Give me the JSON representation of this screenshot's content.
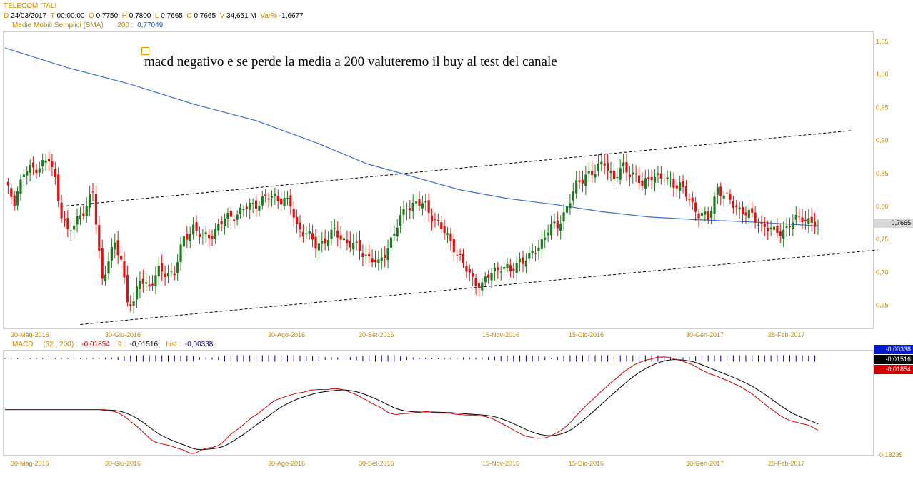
{
  "header": {
    "symbol": "TELECOM ITALI",
    "d_label": "D",
    "date": "24/03/2017",
    "t_label": "T",
    "time": "00:00:00",
    "o_label": "O",
    "open": "0,7750",
    "h_label": "H",
    "high": "0,7800",
    "l_label": "L",
    "low": "0,7665",
    "c_label": "C",
    "close": "0,7665",
    "v_label": "V",
    "volume": "34,651 M",
    "var_label": "Var%",
    "var": "-1,6677",
    "sma_name": "Medie Mobili Semplici (SMA)",
    "sma_period": "200 :",
    "sma_value": "0,77049"
  },
  "annotation": "macd negativo e se perde la media a 200 valuteremo il buy al test del canale",
  "price_badge": "0,7665",
  "macd_header": {
    "name": "MACD",
    "params": "(32 , 200) :",
    "macd_value": "-0,01854",
    "signal_period": "9 :",
    "signal_value": "-0,01516",
    "hist_label": "hist :",
    "hist_value": "-0,00338"
  },
  "macd_badges": [
    "-0,00338",
    "-0,01516",
    "-0,01854"
  ],
  "macd_bottom_label": "-0,18235",
  "colors": {
    "up": "#1f7a1f",
    "down": "#e01010",
    "sma": "#3a6fd0",
    "macd_line": "#000000",
    "signal_line": "#d00000",
    "hist": "#00008b",
    "axis_text": "#c08a00"
  },
  "chart_data": [
    {
      "type": "candlestick",
      "title": "TELECOM ITALI",
      "ylim": [
        0.615,
        1.065
      ],
      "y_ticks": [
        "1,05",
        "1,00",
        "0,95",
        "0,90",
        "0,85",
        "0,80",
        "0,75",
        "0,70",
        "0,65"
      ],
      "y_tick_values": [
        1.05,
        1.0,
        0.95,
        0.9,
        0.85,
        0.8,
        0.75,
        0.7,
        0.65
      ],
      "x_labels": [
        "30-Mag-2016",
        "30-Giu-2016",
        "30-Ago-2016",
        "30-Set-2016",
        "15-Nov-2016",
        "15-Dic-2016",
        "30-Gen-2017",
        "28-Feb-2017"
      ],
      "close_points": [
        [
          0,
          0.83
        ],
        [
          3,
          0.81
        ],
        [
          6,
          0.85
        ],
        [
          10,
          0.86
        ],
        [
          14,
          0.87
        ],
        [
          16,
          0.84
        ],
        [
          18,
          0.79
        ],
        [
          20,
          0.76
        ],
        [
          22,
          0.77
        ],
        [
          24,
          0.79
        ],
        [
          26,
          0.8
        ],
        [
          28,
          0.82
        ],
        [
          30,
          0.73
        ],
        [
          31,
          0.69
        ],
        [
          33,
          0.72
        ],
        [
          35,
          0.74
        ],
        [
          37,
          0.72
        ],
        [
          39,
          0.66
        ],
        [
          41,
          0.65
        ],
        [
          43,
          0.69
        ],
        [
          46,
          0.68
        ],
        [
          49,
          0.7
        ],
        [
          52,
          0.7
        ],
        [
          54,
          0.7
        ],
        [
          57,
          0.75
        ],
        [
          60,
          0.77
        ],
        [
          63,
          0.75
        ],
        [
          66,
          0.76
        ],
        [
          70,
          0.78
        ],
        [
          74,
          0.79
        ],
        [
          78,
          0.8
        ],
        [
          82,
          0.81
        ],
        [
          86,
          0.815
        ],
        [
          89,
          0.81
        ],
        [
          91,
          0.8
        ],
        [
          93,
          0.77
        ],
        [
          96,
          0.76
        ],
        [
          99,
          0.74
        ],
        [
          102,
          0.75
        ],
        [
          105,
          0.76
        ],
        [
          108,
          0.75
        ],
        [
          111,
          0.74
        ],
        [
          114,
          0.73
        ],
        [
          117,
          0.72
        ],
        [
          119,
          0.71
        ],
        [
          122,
          0.74
        ],
        [
          125,
          0.77
        ],
        [
          128,
          0.8
        ],
        [
          131,
          0.805
        ],
        [
          134,
          0.8
        ],
        [
          137,
          0.78
        ],
        [
          140,
          0.76
        ],
        [
          143,
          0.74
        ],
        [
          146,
          0.71
        ],
        [
          149,
          0.69
        ],
        [
          152,
          0.68
        ],
        [
          155,
          0.7
        ],
        [
          158,
          0.71
        ],
        [
          161,
          0.7
        ],
        [
          164,
          0.72
        ],
        [
          167,
          0.72
        ],
        [
          170,
          0.74
        ],
        [
          173,
          0.765
        ],
        [
          176,
          0.77
        ],
        [
          179,
          0.8
        ],
        [
          182,
          0.83
        ],
        [
          185,
          0.85
        ],
        [
          188,
          0.85
        ],
        [
          191,
          0.87
        ],
        [
          194,
          0.84
        ],
        [
          197,
          0.86
        ],
        [
          200,
          0.85
        ],
        [
          203,
          0.83
        ],
        [
          206,
          0.85
        ],
        [
          209,
          0.84
        ],
        [
          212,
          0.84
        ],
        [
          215,
          0.83
        ],
        [
          218,
          0.81
        ],
        [
          221,
          0.79
        ],
        [
          224,
          0.78
        ],
        [
          227,
          0.83
        ],
        [
          230,
          0.81
        ],
        [
          233,
          0.8
        ],
        [
          236,
          0.79
        ],
        [
          239,
          0.78
        ],
        [
          242,
          0.77
        ],
        [
          245,
          0.76
        ],
        [
          248,
          0.765
        ],
        [
          251,
          0.775
        ],
        [
          254,
          0.785
        ],
        [
          257,
          0.775
        ],
        [
          259,
          0.7665
        ]
      ],
      "sma200": {
        "name": "Medie Mobili Semplici (SMA) 200",
        "points": [
          [
            0,
            1.04
          ],
          [
            20,
            1.01
          ],
          [
            40,
            0.985
          ],
          [
            60,
            0.955
          ],
          [
            80,
            0.93
          ],
          [
            100,
            0.895
          ],
          [
            115,
            0.865
          ],
          [
            130,
            0.845
          ],
          [
            145,
            0.825
          ],
          [
            160,
            0.812
          ],
          [
            175,
            0.803
          ],
          [
            190,
            0.792
          ],
          [
            205,
            0.784
          ],
          [
            220,
            0.78
          ],
          [
            240,
            0.776
          ],
          [
            259,
            0.7705
          ]
        ]
      },
      "channel_upper": [
        [
          18,
          0.8
        ],
        [
          270,
          0.915
        ]
      ],
      "channel_lower": [
        [
          24,
          0.621
        ],
        [
          278,
          0.734
        ]
      ]
    },
    {
      "type": "line",
      "title": "MACD",
      "series": [
        {
          "name": "MACD (32 , 200)",
          "values_at_end": -0.01854
        },
        {
          "name": "9",
          "values_at_end": -0.01516
        },
        {
          "name": "hist",
          "values_at_end": -0.00338
        }
      ],
      "ylim_bottom": -0.18235
    }
  ]
}
